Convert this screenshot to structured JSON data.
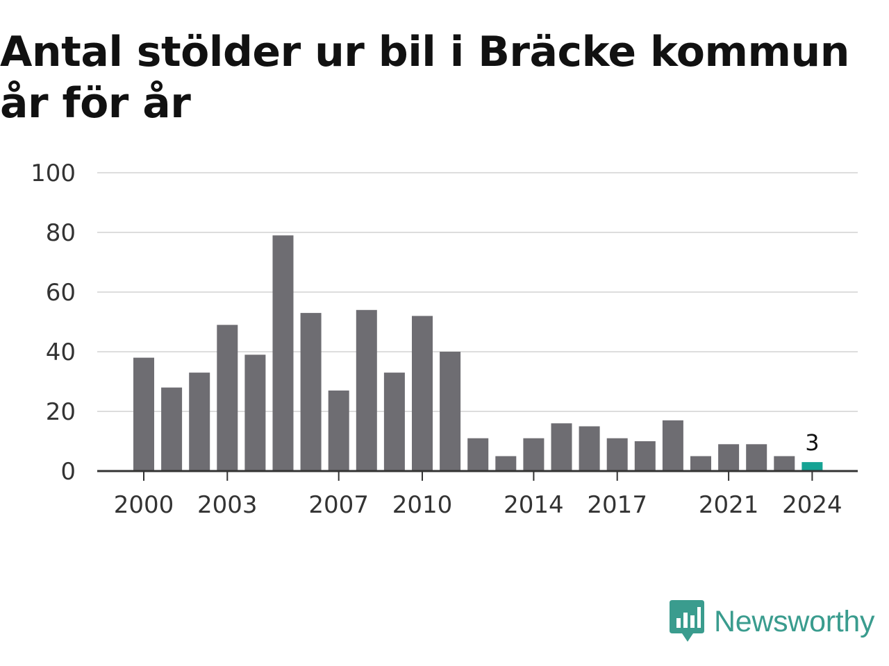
{
  "title": "Antal stölder ur bil i Bräcke kommun år för år",
  "brand": {
    "name": "Newsworthy",
    "icon": "newsworthy-logo-icon",
    "color": "#3a9c8e"
  },
  "colors": {
    "bar": "#6e6d72",
    "highlight": "#16a394",
    "grid": "#dddddd",
    "axis": "#333333"
  },
  "chart_data": {
    "type": "bar",
    "title": "Antal stölder ur bil i Bräcke kommun år för år",
    "xlabel": "",
    "ylabel": "",
    "categories": [
      2000,
      2001,
      2002,
      2003,
      2004,
      2005,
      2006,
      2007,
      2008,
      2009,
      2010,
      2011,
      2012,
      2013,
      2014,
      2015,
      2016,
      2017,
      2018,
      2019,
      2020,
      2021,
      2022,
      2023,
      2024
    ],
    "values": [
      38,
      28,
      33,
      49,
      39,
      79,
      53,
      27,
      54,
      33,
      52,
      40,
      11,
      5,
      11,
      16,
      15,
      11,
      10,
      17,
      5,
      9,
      9,
      5,
      3
    ],
    "ylim": [
      0,
      100
    ],
    "yticks": [
      0,
      20,
      40,
      60,
      80,
      100
    ],
    "xticks": [
      2000,
      2003,
      2007,
      2010,
      2014,
      2017,
      2021,
      2024
    ],
    "highlight": {
      "category": 2024,
      "label": "3"
    },
    "grid": true,
    "legend": "none"
  }
}
